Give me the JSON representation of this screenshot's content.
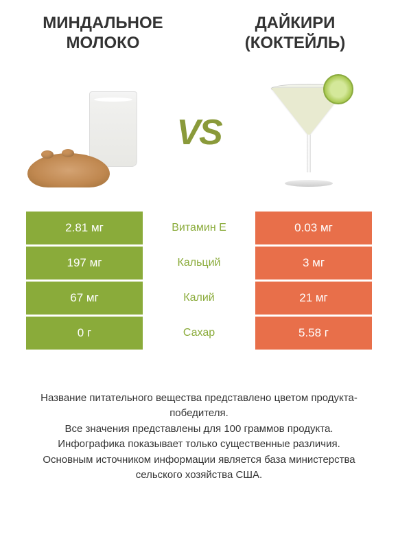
{
  "colors": {
    "left": "#8aab3a",
    "right": "#e86f4a",
    "row_bg": "#ffffff",
    "text": "#333333"
  },
  "header": {
    "left_title_line1": "МИНДАЛЬНОЕ",
    "left_title_line2": "МОЛОКО",
    "right_title_line1": "ДАЙКИРИ",
    "right_title_line2": "(КОКТЕЙЛЬ)",
    "vs": "VS"
  },
  "table": {
    "rows": [
      {
        "left": "2.81 мг",
        "label": "Витамин E",
        "right": "0.03 мг",
        "winner": "left"
      },
      {
        "left": "197 мг",
        "label": "Кальций",
        "right": "3 мг",
        "winner": "left"
      },
      {
        "left": "67 мг",
        "label": "Калий",
        "right": "21 мг",
        "winner": "left"
      },
      {
        "left": "0 г",
        "label": "Сахар",
        "right": "5.58 г",
        "winner": "left"
      }
    ]
  },
  "footnote": {
    "line1": "Название питательного вещества представлено цветом продукта-победителя.",
    "line2": "Все значения представлены для 100 граммов продукта.",
    "line3": "Инфографика показывает только существенные различия.",
    "line4": "Основным источником информации является база министерства сельского хозяйства США."
  }
}
